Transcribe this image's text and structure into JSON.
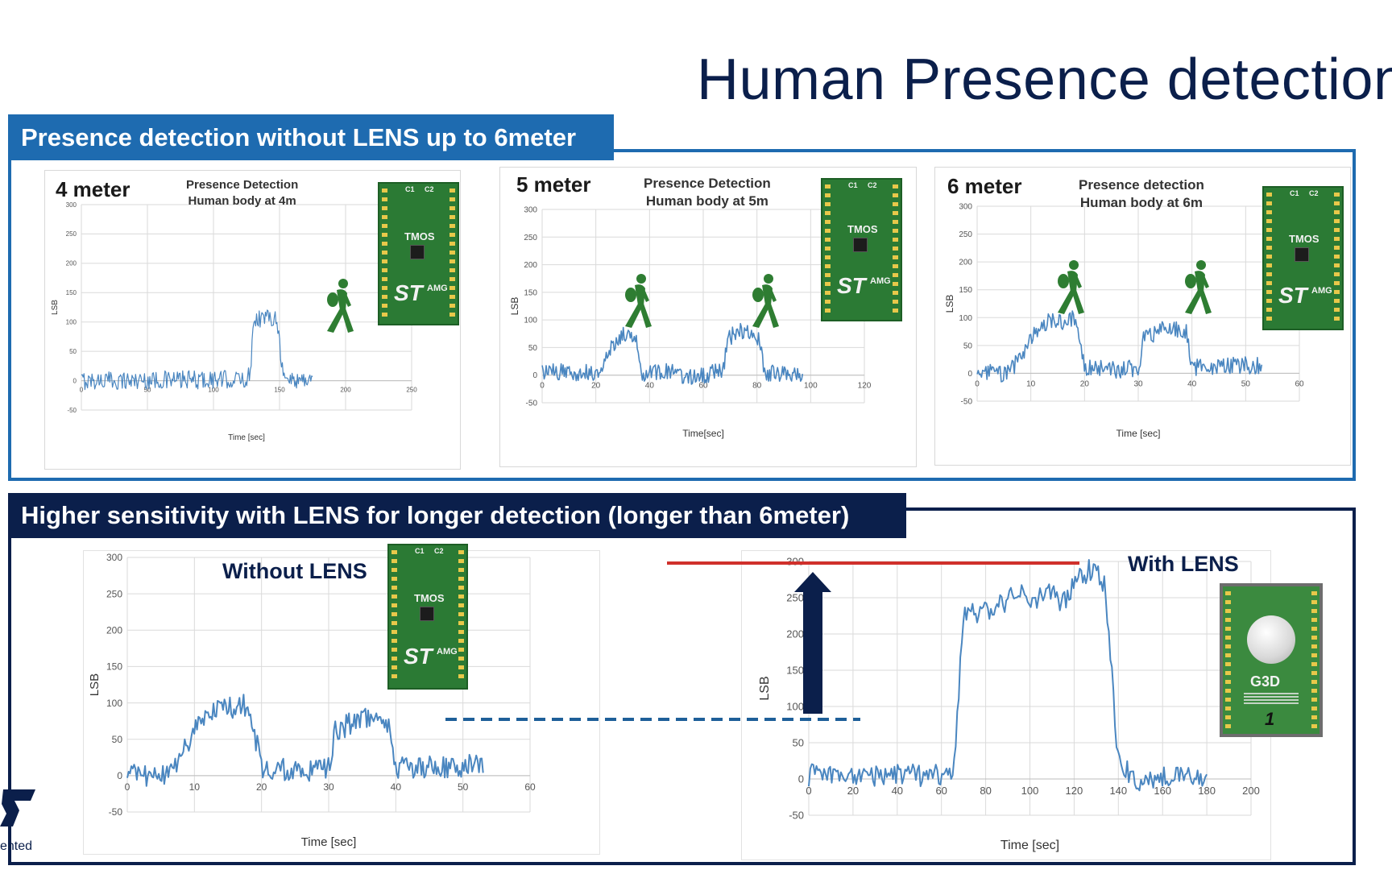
{
  "title": "Human Presence detection",
  "section1": {
    "header": "Presence detection without LENS up to 6meter"
  },
  "section2": {
    "header": "Higher sensitivity with LENS for longer detection (longer than 6meter)"
  },
  "board": {
    "c1": "C1",
    "c2": "C2",
    "chip": "TMOS",
    "logo": "ST",
    "suffix": "AMG"
  },
  "lens_board": {
    "marking": "G3D",
    "number": "1"
  },
  "footer": {
    "tag": "ented"
  },
  "colors": {
    "series": "#4a86c0",
    "frame1": "#1e6bb0",
    "frame2": "#0b1f4b",
    "ref_line": "#d0302b",
    "arrow": "#0b1f4b",
    "walker": "#2e7d32"
  },
  "chart_data": [
    {
      "id": "c4m",
      "type": "line",
      "distance_label": "4 meter",
      "title_line1": "Presence Detection",
      "title_line2": "Human body at 4m",
      "xlabel": "Time [sec]",
      "ylabel": "LSB",
      "xlim": [
        0,
        250
      ],
      "ylim": [
        -50,
        300
      ],
      "xticks": [
        "0",
        "50",
        "100",
        "150",
        "200",
        "250"
      ],
      "yticks": [
        "-50",
        "0",
        "50",
        "100",
        "150",
        "200",
        "250",
        "300"
      ],
      "x_end": 175,
      "segments": [
        [
          0,
          0
        ],
        [
          125,
          2
        ],
        [
          128,
          12
        ],
        [
          130,
          105
        ],
        [
          148,
          110
        ],
        [
          153,
          2
        ],
        [
          175,
          2
        ]
      ]
    },
    {
      "id": "c5m",
      "type": "line",
      "distance_label": "5 meter",
      "title_line1": "Presence Detection",
      "title_line2": "Human body at 5m",
      "xlabel": "Time[sec]",
      "ylabel": "LSB",
      "xlim": [
        0,
        120
      ],
      "ylim": [
        -50,
        300
      ],
      "xticks": [
        "0",
        "20",
        "40",
        "60",
        "80",
        "100",
        "120"
      ],
      "yticks": [
        "-50",
        "0",
        "50",
        "100",
        "150",
        "200",
        "250",
        "300"
      ],
      "x_end": 97,
      "segments": [
        [
          0,
          5
        ],
        [
          22,
          5
        ],
        [
          26,
          55
        ],
        [
          30,
          72
        ],
        [
          35,
          75
        ],
        [
          37,
          5
        ],
        [
          48,
          5
        ],
        [
          55,
          -5
        ],
        [
          67,
          8
        ],
        [
          70,
          70
        ],
        [
          75,
          80
        ],
        [
          80,
          75
        ],
        [
          83,
          5
        ],
        [
          97,
          0
        ]
      ]
    },
    {
      "id": "c6m",
      "type": "line",
      "distance_label": "6 meter",
      "title_line1": "Presence detection",
      "title_line2": "Human body at 6m",
      "xlabel": "Time [sec]",
      "ylabel": "LSB",
      "xlim": [
        0,
        60
      ],
      "ylim": [
        -50,
        300
      ],
      "xticks": [
        "0",
        "10",
        "20",
        "30",
        "40",
        "50",
        "60"
      ],
      "yticks": [
        "-50",
        "0",
        "50",
        "100",
        "150",
        "200",
        "250",
        "300"
      ],
      "x_end": 53,
      "segments": [
        [
          0,
          0
        ],
        [
          6,
          0
        ],
        [
          10,
          60
        ],
        [
          12,
          90
        ],
        [
          17,
          95
        ],
        [
          18,
          100
        ],
        [
          20,
          12
        ],
        [
          26,
          5
        ],
        [
          30,
          10
        ],
        [
          31,
          60
        ],
        [
          35,
          80
        ],
        [
          39,
          75
        ],
        [
          40,
          10
        ],
        [
          53,
          15
        ]
      ]
    },
    {
      "id": "cno",
      "type": "line",
      "series_label": "Without LENS",
      "xlabel": "Time [sec]",
      "ylabel": "LSB",
      "xlim": [
        0,
        60
      ],
      "ylim": [
        -50,
        300
      ],
      "xticks": [
        "0",
        "10",
        "20",
        "30",
        "40",
        "50",
        "60"
      ],
      "yticks": [
        "-50",
        "0",
        "50",
        "100",
        "150",
        "200",
        "250",
        "300"
      ],
      "x_end": 53,
      "segments": [
        [
          0,
          0
        ],
        [
          6,
          0
        ],
        [
          10,
          60
        ],
        [
          12,
          90
        ],
        [
          17,
          95
        ],
        [
          18,
          100
        ],
        [
          20,
          12
        ],
        [
          26,
          5
        ],
        [
          30,
          10
        ],
        [
          31,
          60
        ],
        [
          35,
          80
        ],
        [
          39,
          75
        ],
        [
          40,
          10
        ],
        [
          53,
          15
        ]
      ]
    },
    {
      "id": "cwith",
      "type": "line",
      "series_label": "With LENS",
      "xlabel": "Time [sec]",
      "ylabel": "LSB",
      "xlim": [
        0,
        200
      ],
      "ylim": [
        -50,
        300
      ],
      "xticks": [
        "0",
        "20",
        "40",
        "60",
        "80",
        "100",
        "120",
        "140",
        "160",
        "180",
        "200"
      ],
      "yticks": [
        "-50",
        "0",
        "50",
        "100",
        "150",
        "200",
        "250",
        "300"
      ],
      "x_end": 180,
      "segments": [
        [
          0,
          5
        ],
        [
          62,
          5
        ],
        [
          66,
          20
        ],
        [
          70,
          230
        ],
        [
          78,
          225
        ],
        [
          85,
          240
        ],
        [
          95,
          255
        ],
        [
          105,
          250
        ],
        [
          110,
          260
        ],
        [
          115,
          240
        ],
        [
          122,
          275
        ],
        [
          128,
          290
        ],
        [
          134,
          265
        ],
        [
          140,
          20
        ],
        [
          150,
          -5
        ],
        [
          170,
          10
        ],
        [
          180,
          -5
        ]
      ]
    }
  ]
}
